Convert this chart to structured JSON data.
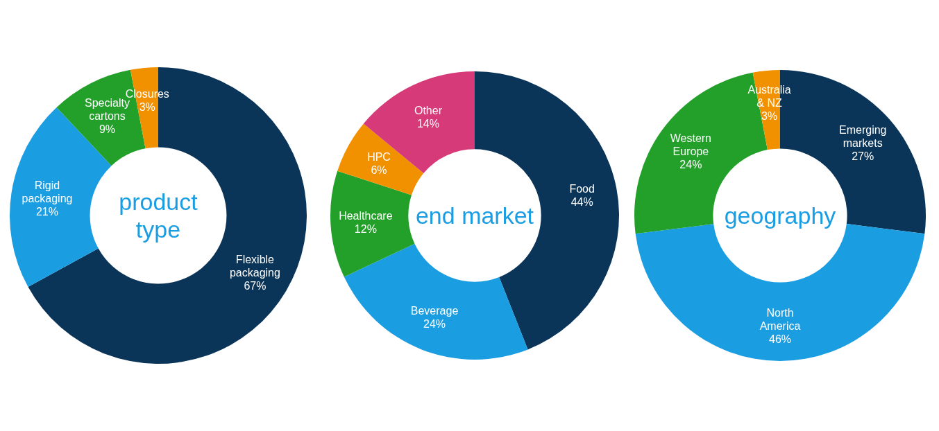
{
  "chart_data": [
    {
      "type": "donut",
      "title": "product type",
      "categories": [
        "Flexible packaging",
        "Rigid packaging",
        "Specialty cartons",
        "Closures"
      ],
      "values": [
        67,
        21,
        9,
        3
      ],
      "value_labels": [
        "67%",
        "21%",
        "9%",
        "3%"
      ],
      "colors": [
        "#0b3558",
        "#1b9de2",
        "#23a02a",
        "#f29100"
      ]
    },
    {
      "type": "donut",
      "title": "end market",
      "categories": [
        "Food",
        "Beverage",
        "Healthcare",
        "HPC",
        "Other"
      ],
      "values": [
        44,
        24,
        12,
        6,
        14
      ],
      "value_labels": [
        "44%",
        "24%",
        "12%",
        "6%",
        "14%"
      ],
      "colors": [
        "#0b3558",
        "#1b9de2",
        "#23a02a",
        "#f29100",
        "#d63a78"
      ]
    },
    {
      "type": "donut",
      "title": "geography",
      "categories": [
        "Emerging markets",
        "North America",
        "Western Europe",
        "Australia & NZ"
      ],
      "values": [
        27,
        46,
        24,
        3
      ],
      "value_labels": [
        "27%",
        "46%",
        "24%",
        "3%"
      ],
      "colors": [
        "#0b3558",
        "#1b9de2",
        "#23a02a",
        "#f29100"
      ]
    }
  ]
}
